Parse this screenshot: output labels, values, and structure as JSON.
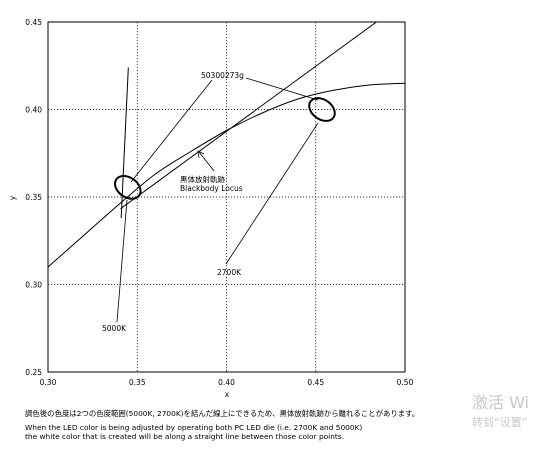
{
  "chart_data": {
    "type": "line",
    "xlabel": "x",
    "ylabel": "y",
    "xlim": [
      0.3,
      0.5
    ],
    "ylim": [
      0.25,
      0.45
    ],
    "xticks": [
      "0.30",
      "0.35",
      "0.40",
      "0.45",
      "0.50"
    ],
    "yticks": [
      "0.25",
      "0.30",
      "0.35",
      "0.40",
      "0.45"
    ],
    "grid": "dotted",
    "series": [
      {
        "kind": "curve",
        "x": [
          0.3,
          0.32,
          0.34,
          0.36,
          0.38,
          0.4,
          0.42,
          0.44,
          0.46,
          0.48,
          0.5
        ],
        "y": [
          0.31,
          0.328,
          0.346,
          0.363,
          0.376,
          0.388,
          0.398,
          0.406,
          0.411,
          0.414,
          0.415
        ]
      },
      {
        "kind": "line",
        "x": [
          0.3406,
          0.484
        ],
        "y": [
          0.3433,
          0.45
        ]
      },
      {
        "kind": "line",
        "x": [
          0.345,
          0.341
        ],
        "y": [
          0.424,
          0.338
        ]
      }
    ],
    "ellipses": [
      {
        "cx": 0.3447,
        "cy": 0.3555,
        "rx": 0.0055,
        "ry": 0.008,
        "angle": -55
      },
      {
        "cx": 0.4535,
        "cy": 0.4,
        "rx": 0.0055,
        "ry": 0.008,
        "angle": -55
      }
    ],
    "annotations": [
      {
        "text": "50300273g"
      },
      {
        "text": "黒体放射軌跡"
      },
      {
        "text": "Blackbody Locus"
      },
      {
        "text": "2700K"
      },
      {
        "text": "5000K"
      }
    ]
  },
  "caption": {
    "line1": "調色後の色度は2つの色度範囲(5000K, 2700K)を結んだ線上にできるため、黒体放射軌跡から離れることがあります。",
    "line2": "When the LED color is being adjusted by operating both PC LED die (i.e. 2700K and 5000K)",
    "line3": "the white color that is created will be along a straight line between those color points."
  },
  "watermark": {
    "line1": "激活 Wi",
    "line2": "转到“设置”"
  }
}
